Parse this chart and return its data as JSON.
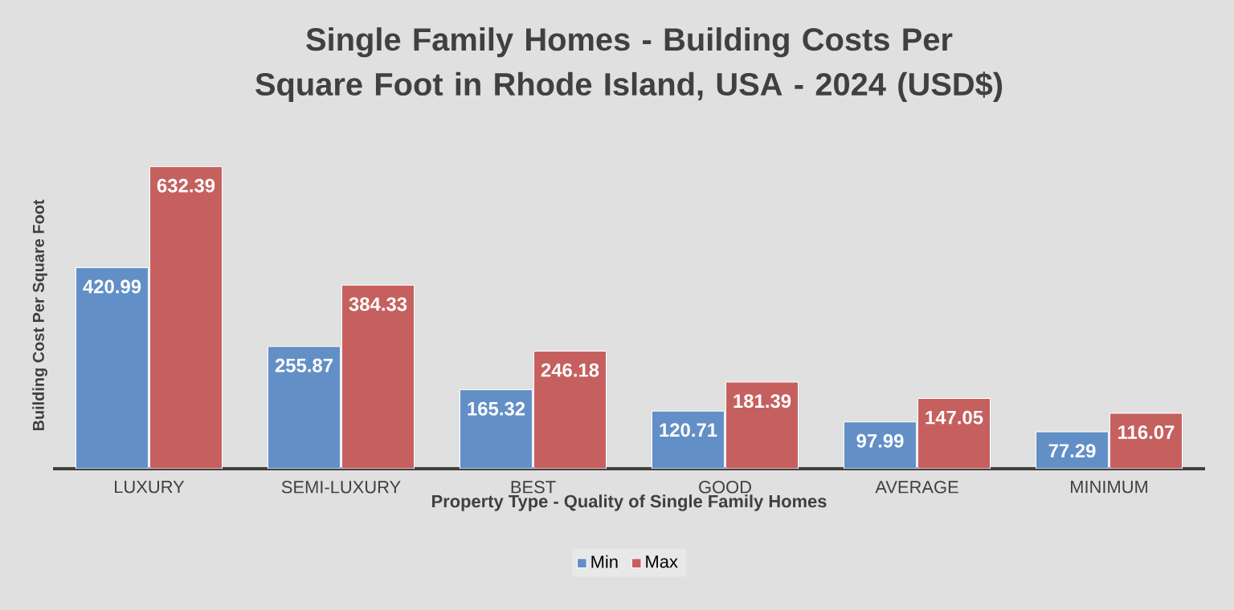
{
  "chart_data": {
    "type": "bar",
    "title": "Single Family Homes - Building Costs Per Square Foot in Rhode Island, USA - 2024 (USD$)",
    "xlabel": "Property Type - Quality of Single Family Homes",
    "ylabel": "Building Cost Per Square Foot",
    "categories": [
      "LUXURY",
      "SEMI-LUXURY",
      "BEST",
      "GOOD",
      "AVERAGE",
      "MINIMUM"
    ],
    "series": [
      {
        "name": "Min",
        "color": "#628fc6",
        "values": [
          420.99,
          255.87,
          165.32,
          120.71,
          97.99,
          77.29
        ]
      },
      {
        "name": "Max",
        "color": "#c5605f",
        "values": [
          632.39,
          384.33,
          246.18,
          181.39,
          147.05,
          116.07
        ]
      }
    ],
    "legend": "bottom",
    "data_labels": true
  }
}
